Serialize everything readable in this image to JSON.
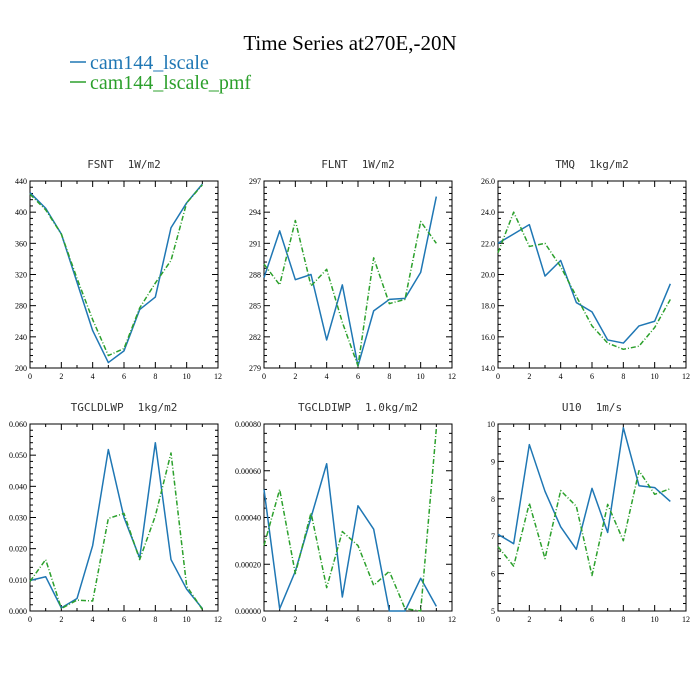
{
  "figure": {
    "title": "Time Series at270E,-20N",
    "legend": [
      {
        "name": "cam144_lscale",
        "color": "#1f77b4"
      },
      {
        "name": "cam144_lscale_pmf",
        "color": "#2ca02c"
      }
    ]
  },
  "chart_data": [
    {
      "type": "line",
      "title": "FSNT",
      "units": "1W/m2",
      "xlabel": "",
      "ylabel": "",
      "x": [
        0,
        1,
        2,
        3,
        4,
        5,
        6,
        7,
        8,
        9,
        10,
        11
      ],
      "xlim": [
        0,
        12
      ],
      "xticks": [
        "0",
        "2",
        "4",
        "6",
        "8",
        "10",
        "12"
      ],
      "ylim": [
        200,
        440
      ],
      "yticks": [
        "200",
        "240",
        "280",
        "320",
        "360",
        "400",
        "440"
      ],
      "series": [
        {
          "name": "cam144_lscale",
          "color": "#1f77b4",
          "style": "solid",
          "values": [
            425,
            405,
            372,
            310,
            248,
            207,
            222,
            275,
            291,
            380,
            412,
            436
          ]
        },
        {
          "name": "cam144_lscale_pmf",
          "color": "#2ca02c",
          "style": "dashed",
          "values": [
            423,
            403,
            372,
            315,
            262,
            216,
            225,
            277,
            309,
            338,
            412,
            435
          ]
        }
      ]
    },
    {
      "type": "line",
      "title": "FLNT",
      "units": "1W/m2",
      "xlabel": "",
      "ylabel": "",
      "x": [
        0,
        1,
        2,
        3,
        4,
        5,
        6,
        7,
        8,
        9,
        10,
        11
      ],
      "xlim": [
        0,
        12
      ],
      "xticks": [
        "0",
        "2",
        "4",
        "6",
        "8",
        "10",
        "12"
      ],
      "ylim": [
        279,
        297
      ],
      "yticks": [
        "279",
        "282",
        "285",
        "288",
        "291",
        "294",
        "297"
      ],
      "series": [
        {
          "name": "cam144_lscale",
          "color": "#1f77b4",
          "style": "solid",
          "values": [
            287.7,
            292.2,
            287.5,
            288.0,
            281.7,
            287.0,
            279.2,
            284.5,
            285.6,
            285.7,
            288.2,
            295.5
          ]
        },
        {
          "name": "cam144_lscale_pmf",
          "color": "#2ca02c",
          "style": "dashed",
          "values": [
            289.0,
            287.0,
            293.2,
            286.9,
            288.5,
            283.4,
            279.2,
            289.6,
            285.2,
            285.6,
            293.1,
            291.0
          ]
        }
      ]
    },
    {
      "type": "line",
      "title": "TMQ",
      "units": "1kg/m2",
      "xlabel": "",
      "ylabel": "",
      "x": [
        0,
        1,
        2,
        3,
        4,
        5,
        6,
        7,
        8,
        9,
        10,
        11
      ],
      "xlim": [
        0,
        12
      ],
      "xticks": [
        "0",
        "2",
        "4",
        "6",
        "8",
        "10",
        "12"
      ],
      "ylim": [
        14.0,
        26.0
      ],
      "yticks": [
        "14.0",
        "16.0",
        "18.0",
        "20.0",
        "22.0",
        "24.0",
        "26.0"
      ],
      "series": [
        {
          "name": "cam144_lscale",
          "color": "#1f77b4",
          "style": "solid",
          "values": [
            22.0,
            22.6,
            23.2,
            19.9,
            20.9,
            18.2,
            17.6,
            15.8,
            15.6,
            16.7,
            17.0,
            19.4
          ]
        },
        {
          "name": "cam144_lscale_pmf",
          "color": "#2ca02c",
          "style": "dashed",
          "values": [
            21.4,
            24.0,
            21.8,
            22.0,
            20.5,
            18.6,
            16.7,
            15.6,
            15.2,
            15.4,
            16.6,
            18.4
          ]
        }
      ]
    },
    {
      "type": "line",
      "title": "TGCLDLWP",
      "units": "1kg/m2",
      "xlabel": "",
      "ylabel": "",
      "x": [
        0,
        1,
        2,
        3,
        4,
        5,
        6,
        7,
        8,
        9,
        10,
        11
      ],
      "xlim": [
        0,
        12
      ],
      "xticks": [
        "0",
        "2",
        "4",
        "6",
        "8",
        "10",
        "12"
      ],
      "ylim": [
        0.0,
        0.06
      ],
      "yticks": [
        "0.000",
        "0.010",
        "0.020",
        "0.030",
        "0.040",
        "0.050",
        "0.060"
      ],
      "series": [
        {
          "name": "cam144_lscale",
          "color": "#1f77b4",
          "style": "solid",
          "values": [
            0.0098,
            0.011,
            0.001,
            0.004,
            0.021,
            0.0518,
            0.03,
            0.017,
            0.054,
            0.0165,
            0.007,
            0.0008
          ]
        },
        {
          "name": "cam144_lscale_pmf",
          "color": "#2ca02c",
          "style": "dashed",
          "values": [
            0.0095,
            0.0165,
            0.0008,
            0.0035,
            0.0032,
            0.0297,
            0.0313,
            0.0165,
            0.0305,
            0.0507,
            0.008,
            0.0005
          ]
        }
      ]
    },
    {
      "type": "line",
      "title": "TGCLDIWP",
      "units": "1.0kg/m2",
      "xlabel": "",
      "ylabel": "",
      "x": [
        0,
        1,
        2,
        3,
        4,
        5,
        6,
        7,
        8,
        9,
        10,
        11
      ],
      "xlim": [
        0,
        12
      ],
      "xticks": [
        "0",
        "2",
        "4",
        "6",
        "8",
        "10",
        "12"
      ],
      "ylim": [
        0.0,
        0.0008
      ],
      "yticks": [
        "0.00000",
        "0.00020",
        "0.00040",
        "0.00060",
        "0.00080"
      ],
      "series": [
        {
          "name": "cam144_lscale",
          "color": "#1f77b4",
          "style": "solid",
          "values": [
            0.00052,
            1e-05,
            0.00017,
            0.0004,
            0.00063,
            6e-05,
            0.00045,
            0.00035,
            0.0,
            0.0,
            0.00014,
            2e-05
          ]
        },
        {
          "name": "cam144_lscale_pmf",
          "color": "#2ca02c",
          "style": "dashed",
          "values": [
            0.00028,
            0.00052,
            0.00016,
            0.00042,
            0.0001,
            0.00034,
            0.00028,
            0.00011,
            0.00017,
            1e-05,
            0.0,
            0.00078
          ]
        }
      ]
    },
    {
      "type": "line",
      "title": "U10",
      "units": "1m/s",
      "xlabel": "",
      "ylabel": "",
      "x": [
        0,
        1,
        2,
        3,
        4,
        5,
        6,
        7,
        8,
        9,
        10,
        11
      ],
      "xlim": [
        0,
        12
      ],
      "xticks": [
        "0",
        "2",
        "4",
        "6",
        "8",
        "10",
        "12"
      ],
      "ylim": [
        5,
        10
      ],
      "yticks": [
        "5",
        "6",
        "7",
        "8",
        "9",
        "10"
      ],
      "series": [
        {
          "name": "cam144_lscale",
          "color": "#1f77b4",
          "style": "solid",
          "values": [
            7.05,
            6.8,
            9.45,
            8.2,
            7.25,
            6.65,
            8.28,
            7.1,
            9.9,
            8.35,
            8.3,
            7.93
          ]
        },
        {
          "name": "cam144_lscale_pmf",
          "color": "#2ca02c",
          "style": "dashed",
          "values": [
            6.72,
            6.2,
            7.88,
            6.4,
            8.22,
            7.8,
            5.95,
            7.85,
            6.88,
            8.75,
            8.12,
            8.27
          ]
        }
      ]
    }
  ]
}
